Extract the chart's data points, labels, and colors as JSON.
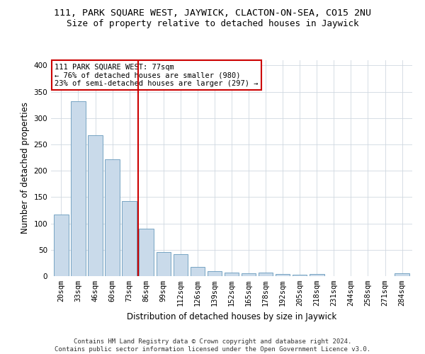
{
  "title": "111, PARK SQUARE WEST, JAYWICK, CLACTON-ON-SEA, CO15 2NU",
  "subtitle": "Size of property relative to detached houses in Jaywick",
  "xlabel": "Distribution of detached houses by size in Jaywick",
  "ylabel": "Number of detached properties",
  "bar_color": "#c9daea",
  "bar_edgecolor": "#6699bb",
  "grid_color": "#d0d8e0",
  "background_color": "#ffffff",
  "categories": [
    "20sqm",
    "33sqm",
    "46sqm",
    "60sqm",
    "73sqm",
    "86sqm",
    "99sqm",
    "112sqm",
    "126sqm",
    "139sqm",
    "152sqm",
    "165sqm",
    "178sqm",
    "192sqm",
    "205sqm",
    "218sqm",
    "231sqm",
    "244sqm",
    "258sqm",
    "271sqm",
    "284sqm"
  ],
  "values": [
    117,
    332,
    267,
    222,
    142,
    90,
    46,
    42,
    18,
    10,
    7,
    6,
    7,
    4,
    3,
    4,
    0,
    0,
    0,
    0,
    5
  ],
  "ylim": [
    0,
    410
  ],
  "yticks": [
    0,
    50,
    100,
    150,
    200,
    250,
    300,
    350,
    400
  ],
  "vline_x": 4.5,
  "vline_color": "#cc0000",
  "annotation_text": "111 PARK SQUARE WEST: 77sqm\n← 76% of detached houses are smaller (980)\n23% of semi-detached houses are larger (297) →",
  "annotation_box_color": "#ffffff",
  "annotation_box_edgecolor": "#cc0000",
  "footer_line1": "Contains HM Land Registry data © Crown copyright and database right 2024.",
  "footer_line2": "Contains public sector information licensed under the Open Government Licence v3.0.",
  "title_fontsize": 9.5,
  "subtitle_fontsize": 9,
  "ylabel_fontsize": 8.5,
  "xlabel_fontsize": 8.5,
  "tick_fontsize": 7.5,
  "annotation_fontsize": 7.5,
  "footer_fontsize": 6.5
}
